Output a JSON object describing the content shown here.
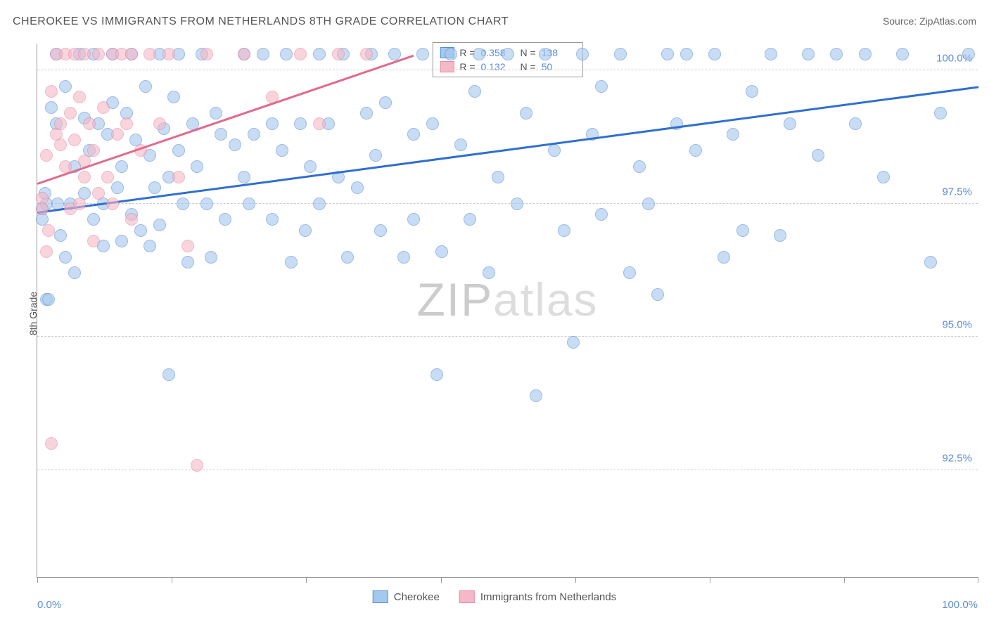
{
  "title": "CHEROKEE VS IMMIGRANTS FROM NETHERLANDS 8TH GRADE CORRELATION CHART",
  "source": "Source: ZipAtlas.com",
  "watermark": {
    "z": "ZIP",
    "rest": "atlas"
  },
  "ylabel": "8th Grade",
  "chart": {
    "type": "scatter",
    "xlim": [
      0,
      100
    ],
    "ylim": [
      90.5,
      100.5
    ],
    "xtick_positions": [
      0,
      14.3,
      28.6,
      42.9,
      57.2,
      71.5,
      85.8,
      100
    ],
    "xtick_labels": {
      "0": "0.0%",
      "100": "100.0%"
    },
    "ytick_positions": [
      92.5,
      95.0,
      97.5,
      100.0
    ],
    "ytick_labels": [
      "92.5%",
      "95.0%",
      "97.5%",
      "100.0%"
    ],
    "grid_color": "#cccccc",
    "background_color": "#ffffff",
    "axis_color": "#999999",
    "label_color": "#5b8dd6",
    "point_radius": 9,
    "point_opacity": 0.6,
    "series": [
      {
        "name": "Cherokee",
        "color_fill": "#a5c8ed",
        "color_stroke": "#5b8dd6",
        "regression": {
          "x1": 0,
          "y1": 97.35,
          "x2": 100,
          "y2": 99.7,
          "color": "#2f6fd0",
          "width": 2.5
        },
        "R": "0.358",
        "N": "138",
        "points": [
          [
            0.5,
            97.4
          ],
          [
            0.5,
            97.2
          ],
          [
            0.8,
            97.7
          ],
          [
            1,
            95.7
          ],
          [
            1,
            97.5
          ],
          [
            1.2,
            95.7
          ],
          [
            1.5,
            99.3
          ],
          [
            2,
            100.3
          ],
          [
            2,
            99.0
          ],
          [
            2.2,
            97.5
          ],
          [
            2.5,
            96.9
          ],
          [
            3,
            96.5
          ],
          [
            3,
            99.7
          ],
          [
            3.5,
            97.5
          ],
          [
            4,
            96.2
          ],
          [
            4,
            98.2
          ],
          [
            4.5,
            100.3
          ],
          [
            5,
            97.7
          ],
          [
            5,
            99.1
          ],
          [
            5.5,
            98.5
          ],
          [
            6,
            100.3
          ],
          [
            6,
            97.2
          ],
          [
            6.5,
            99.0
          ],
          [
            7,
            97.5
          ],
          [
            7,
            96.7
          ],
          [
            7.5,
            98.8
          ],
          [
            8,
            99.4
          ],
          [
            8,
            100.3
          ],
          [
            8.5,
            97.8
          ],
          [
            9,
            96.8
          ],
          [
            9,
            98.2
          ],
          [
            9.5,
            99.2
          ],
          [
            10,
            97.3
          ],
          [
            10,
            100.3
          ],
          [
            10.5,
            98.7
          ],
          [
            11,
            97.0
          ],
          [
            11.5,
            99.7
          ],
          [
            12,
            96.7
          ],
          [
            12,
            98.4
          ],
          [
            12.5,
            97.8
          ],
          [
            13,
            100.3
          ],
          [
            13,
            97.1
          ],
          [
            13.5,
            98.9
          ],
          [
            14,
            98.0
          ],
          [
            14,
            94.3
          ],
          [
            14.5,
            99.5
          ],
          [
            15,
            100.3
          ],
          [
            15,
            98.5
          ],
          [
            15.5,
            97.5
          ],
          [
            16,
            96.4
          ],
          [
            16.5,
            99.0
          ],
          [
            17,
            98.2
          ],
          [
            17.5,
            100.3
          ],
          [
            18,
            97.5
          ],
          [
            18.5,
            96.5
          ],
          [
            19,
            99.2
          ],
          [
            19.5,
            98.8
          ],
          [
            20,
            97.2
          ],
          [
            21,
            98.6
          ],
          [
            22,
            100.3
          ],
          [
            22,
            98.0
          ],
          [
            22.5,
            97.5
          ],
          [
            23,
            98.8
          ],
          [
            24,
            100.3
          ],
          [
            25,
            99.0
          ],
          [
            25,
            97.2
          ],
          [
            26,
            98.5
          ],
          [
            26.5,
            100.3
          ],
          [
            27,
            96.4
          ],
          [
            28,
            99.0
          ],
          [
            28.5,
            97.0
          ],
          [
            29,
            98.2
          ],
          [
            30,
            100.3
          ],
          [
            30,
            97.5
          ],
          [
            31,
            99.0
          ],
          [
            32,
            98.0
          ],
          [
            32.5,
            100.3
          ],
          [
            33,
            96.5
          ],
          [
            34,
            97.8
          ],
          [
            35,
            99.2
          ],
          [
            35.5,
            100.3
          ],
          [
            36,
            98.4
          ],
          [
            36.5,
            97.0
          ],
          [
            37,
            99.4
          ],
          [
            38,
            100.3
          ],
          [
            39,
            96.5
          ],
          [
            40,
            98.8
          ],
          [
            40,
            97.2
          ],
          [
            41,
            100.3
          ],
          [
            42,
            99.0
          ],
          [
            42.5,
            94.3
          ],
          [
            43,
            96.6
          ],
          [
            44,
            100.3
          ],
          [
            45,
            98.6
          ],
          [
            46,
            97.2
          ],
          [
            46.5,
            99.6
          ],
          [
            47,
            100.3
          ],
          [
            48,
            96.2
          ],
          [
            49,
            98.0
          ],
          [
            50,
            100.3
          ],
          [
            51,
            97.5
          ],
          [
            52,
            99.2
          ],
          [
            53,
            93.9
          ],
          [
            54,
            100.3
          ],
          [
            55,
            98.5
          ],
          [
            56,
            97.0
          ],
          [
            57,
            94.9
          ],
          [
            58,
            100.3
          ],
          [
            59,
            98.8
          ],
          [
            60,
            97.3
          ],
          [
            60,
            99.7
          ],
          [
            62,
            100.3
          ],
          [
            63,
            96.2
          ],
          [
            64,
            98.2
          ],
          [
            65,
            97.5
          ],
          [
            66,
            95.8
          ],
          [
            67,
            100.3
          ],
          [
            68,
            99.0
          ],
          [
            69,
            100.3
          ],
          [
            70,
            98.5
          ],
          [
            72,
            100.3
          ],
          [
            73,
            96.5
          ],
          [
            74,
            98.8
          ],
          [
            75,
            97.0
          ],
          [
            76,
            99.6
          ],
          [
            78,
            100.3
          ],
          [
            79,
            96.9
          ],
          [
            80,
            99.0
          ],
          [
            82,
            100.3
          ],
          [
            83,
            98.4
          ],
          [
            85,
            100.3
          ],
          [
            87,
            99.0
          ],
          [
            88,
            100.3
          ],
          [
            90,
            98.0
          ],
          [
            92,
            100.3
          ],
          [
            95,
            96.4
          ],
          [
            96,
            99.2
          ],
          [
            99,
            100.3
          ]
        ]
      },
      {
        "name": "Immigrants from Netherlands",
        "color_fill": "#f5b8c8",
        "color_stroke": "#e88ba5",
        "regression": {
          "x1": 0,
          "y1": 97.9,
          "x2": 40,
          "y2": 100.3,
          "color": "#e06b8c",
          "width": 2.5
        },
        "R": "0.132",
        "N": "50",
        "points": [
          [
            0.5,
            97.6
          ],
          [
            0.5,
            97.4
          ],
          [
            1,
            96.6
          ],
          [
            1,
            98.4
          ],
          [
            1.2,
            97.0
          ],
          [
            1.5,
            99.6
          ],
          [
            2,
            100.3
          ],
          [
            2,
            98.8
          ],
          [
            2.5,
            99.0
          ],
          [
            2.5,
            98.6
          ],
          [
            3,
            100.3
          ],
          [
            3,
            98.2
          ],
          [
            3.5,
            97.4
          ],
          [
            3.5,
            99.2
          ],
          [
            4,
            100.3
          ],
          [
            4,
            98.7
          ],
          [
            4.5,
            99.5
          ],
          [
            4.5,
            97.5
          ],
          [
            5,
            100.3
          ],
          [
            5,
            98.0
          ],
          [
            5.5,
            99.0
          ],
          [
            6,
            96.8
          ],
          [
            6,
            98.5
          ],
          [
            6.5,
            100.3
          ],
          [
            6.5,
            97.7
          ],
          [
            7,
            99.3
          ],
          [
            7.5,
            98.0
          ],
          [
            8,
            100.3
          ],
          [
            8,
            97.5
          ],
          [
            8.5,
            98.8
          ],
          [
            9,
            100.3
          ],
          [
            9.5,
            99.0
          ],
          [
            10,
            100.3
          ],
          [
            10,
            97.2
          ],
          [
            11,
            98.5
          ],
          [
            12,
            100.3
          ],
          [
            13,
            99.0
          ],
          [
            14,
            100.3
          ],
          [
            15,
            98.0
          ],
          [
            16,
            96.7
          ],
          [
            18,
            100.3
          ],
          [
            22,
            100.3
          ],
          [
            25,
            99.5
          ],
          [
            28,
            100.3
          ],
          [
            30,
            99.0
          ],
          [
            32,
            100.3
          ],
          [
            35,
            100.3
          ],
          [
            1.5,
            93.0
          ],
          [
            17,
            92.6
          ],
          [
            5,
            98.3
          ]
        ]
      }
    ]
  },
  "legend_bottom": [
    {
      "label": "Cherokee",
      "fill": "#a5c8ed",
      "stroke": "#5b8dd6"
    },
    {
      "label": "Immigrants from Netherlands",
      "fill": "#f5b8c8",
      "stroke": "#e88ba5"
    }
  ]
}
